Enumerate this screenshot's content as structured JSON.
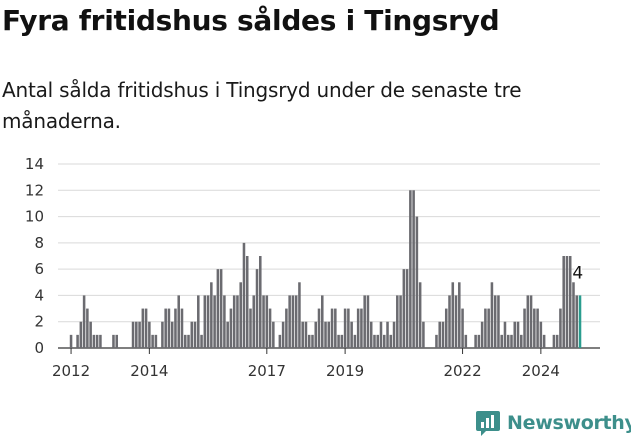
{
  "chart_data": {
    "type": "bar",
    "title": "Fyra fritidshus såldes i Tingsryd",
    "subtitle": "Antal sålda fritidshus i Tingsryd under de senaste tre månaderna.",
    "xlabel": "",
    "ylabel": "",
    "ylim": [
      0,
      14
    ],
    "yticks": [
      0,
      2,
      4,
      6,
      8,
      10,
      12,
      14
    ],
    "xticks": [
      "2012",
      "2014",
      "2017",
      "2019",
      "2022",
      "2024"
    ],
    "grid": true,
    "legend": "none",
    "bar_color": "#6b6b70",
    "highlight_color": "#2a9d8f",
    "highlight_label": "4",
    "series": [
      {
        "x_start": "2011-10",
        "step": "month",
        "values": [
          0,
          0,
          0,
          1,
          0,
          1,
          2,
          4,
          3,
          2,
          1,
          1,
          1,
          0,
          0,
          0,
          1,
          1,
          0,
          0,
          0,
          0,
          2,
          2,
          2,
          3,
          3,
          2,
          1,
          1,
          0,
          2,
          3,
          3,
          2,
          3,
          4,
          3,
          1,
          1,
          2,
          2,
          4,
          1,
          4,
          4,
          5,
          4,
          6,
          6,
          4,
          2,
          3,
          4,
          4,
          5,
          8,
          7,
          3,
          4,
          6,
          7,
          4,
          4,
          3,
          2,
          0,
          1,
          2,
          3,
          4,
          4,
          4,
          5,
          2,
          2,
          1,
          1,
          2,
          3,
          4,
          2,
          2,
          3,
          3,
          1,
          1,
          3,
          3,
          2,
          1,
          3,
          3,
          4,
          4,
          2,
          1,
          1,
          2,
          1,
          2,
          1,
          2,
          4,
          4,
          6,
          6,
          12,
          12,
          10,
          5,
          2,
          0,
          0,
          0,
          1,
          2,
          2,
          3,
          4,
          5,
          4,
          5,
          3,
          1,
          0,
          0,
          1,
          1,
          2,
          3,
          3,
          5,
          4,
          4,
          1,
          2,
          1,
          1,
          2,
          2,
          1,
          3,
          4,
          4,
          3,
          3,
          2,
          1,
          0,
          0,
          1,
          1,
          3,
          7,
          7,
          7,
          5,
          4,
          4
        ]
      }
    ]
  },
  "brand": {
    "name": "Newsworthy",
    "logo_icon": "newsworthy-logo-icon",
    "color": "#3d8f8b"
  }
}
